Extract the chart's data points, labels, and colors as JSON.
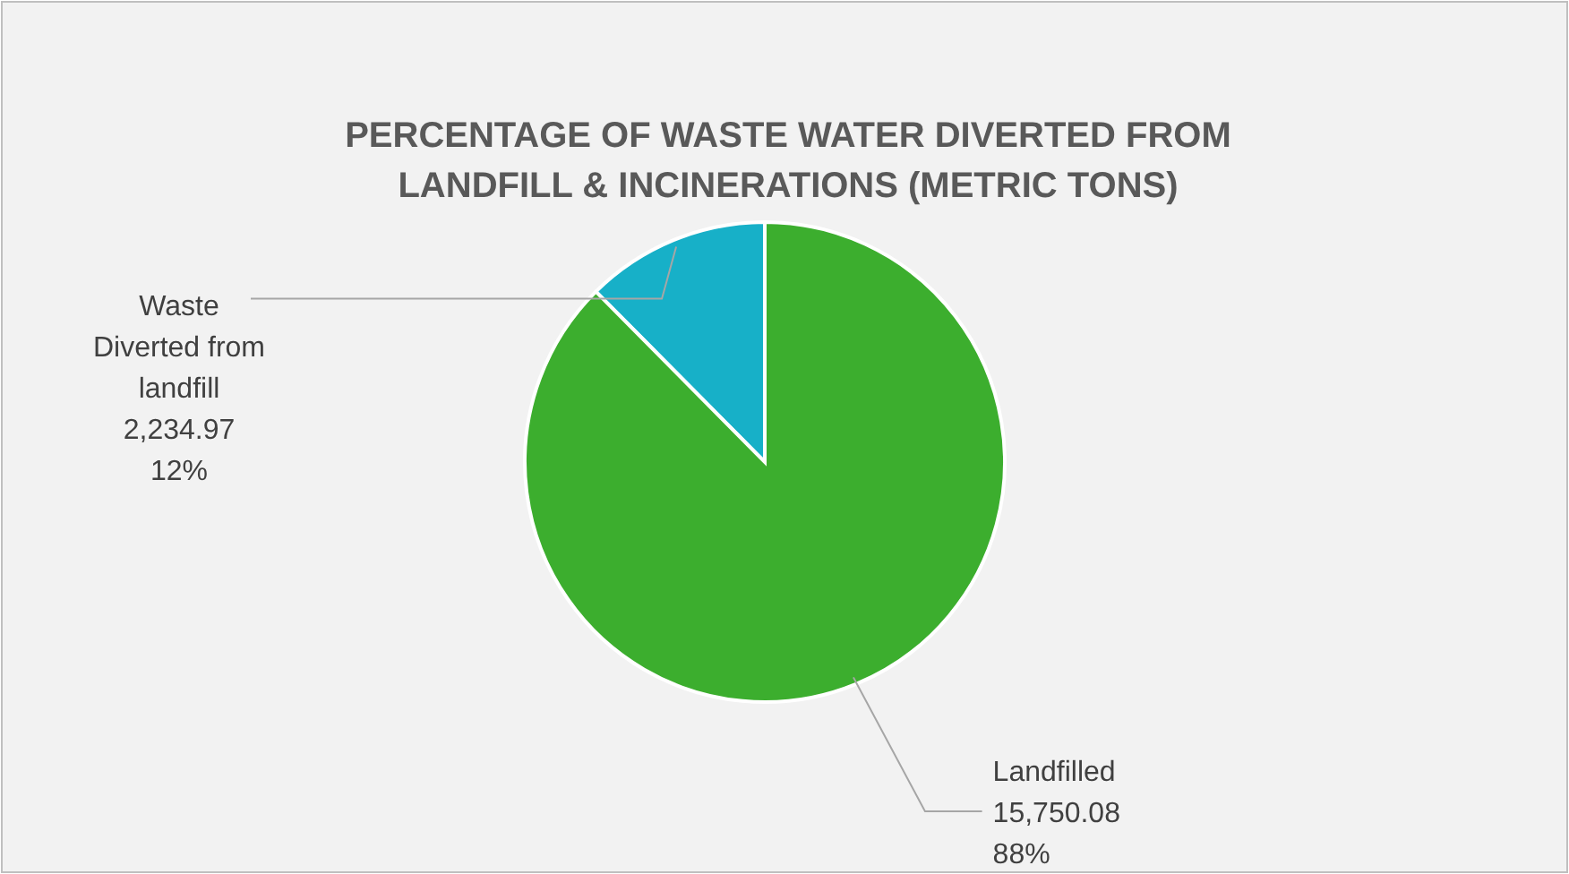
{
  "chart_data": {
    "type": "pie",
    "title": "PERCENTAGE OF WASTE WATER DIVERTED FROM LANDFILL & INCINERATIONS (METRIC TONS)",
    "categories": [
      "Waste Diverted from landfill",
      "Landfilled"
    ],
    "values": [
      2234.97,
      15750.08
    ],
    "colors": [
      "#17b0c8",
      "#3cae2e"
    ],
    "value_labels": [
      "2,234.97\n12%",
      "15,750.08\n88%"
    ]
  }
}
